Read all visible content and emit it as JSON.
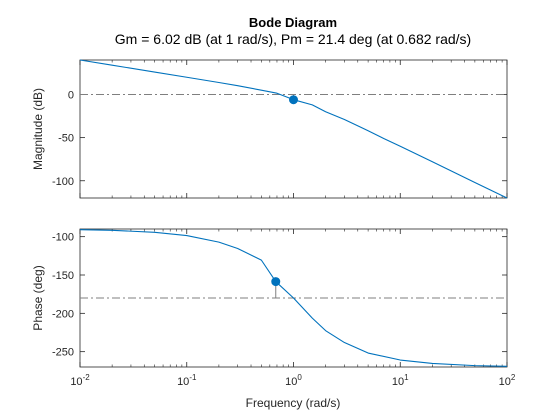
{
  "chart_data": {
    "type": "line",
    "title": "Bode Diagram",
    "subtitle": "Gm = 6.02 dB (at 1 rad/s),  Pm = 21.4 deg (at 0.682 rad/s)",
    "xlabel": "Frequency (rad/s)",
    "xscale": "log",
    "xlim": [
      0.01,
      100
    ],
    "x_ticks": [
      0.01,
      0.1,
      1,
      10,
      100
    ],
    "x_tick_labels": [
      {
        "base": "10",
        "exp": "-2"
      },
      {
        "base": "10",
        "exp": "-1"
      },
      {
        "base": "10",
        "exp": "0"
      },
      {
        "base": "10",
        "exp": "1"
      },
      {
        "base": "10",
        "exp": "2"
      }
    ],
    "line_color": "#0072BD",
    "marker_color": "#0072BD",
    "ref_line_color": "#7f7f7f",
    "magnitude": {
      "ylabel": "Magnitude (dB)",
      "ylim": [
        -120,
        40
      ],
      "yticks": [
        0,
        -50,
        -100
      ],
      "ytick_labels": [
        "0",
        "-50",
        "-100"
      ],
      "reference": 0,
      "marker": {
        "x": 1,
        "y": -6.02
      },
      "series": [
        {
          "x": [
            0.01,
            0.02,
            0.05,
            0.1,
            0.2,
            0.3,
            0.5,
            0.7,
            1,
            1.5,
            2,
            3,
            5,
            7,
            10,
            20,
            50,
            100
          ],
          "y": [
            40,
            34,
            26,
            20,
            13.9,
            10.2,
            5,
            1.5,
            -6,
            -12,
            -20,
            -29,
            -42,
            -51,
            -60,
            -78,
            -102,
            -120
          ]
        }
      ]
    },
    "phase": {
      "ylabel": "Phase (deg)",
      "ylim": [
        -270,
        -90
      ],
      "yticks": [
        -100,
        -150,
        -200,
        -250
      ],
      "ytick_labels": [
        "-100",
        "-150",
        "-200",
        "-250"
      ],
      "reference": -180,
      "marker": {
        "x": 0.682,
        "y": -158.6
      },
      "series": [
        {
          "x": [
            0.01,
            0.02,
            0.05,
            0.1,
            0.2,
            0.3,
            0.5,
            0.682,
            1,
            1.5,
            2,
            3,
            5,
            10,
            20,
            50,
            100
          ],
          "y": [
            -90.9,
            -91.7,
            -94.3,
            -98.6,
            -107.1,
            -115.4,
            -130.6,
            -158.6,
            -180,
            -206.3,
            -222.6,
            -238.1,
            -251.8,
            -260.9,
            -265.4,
            -268.2,
            -269.1
          ]
        }
      ]
    }
  }
}
